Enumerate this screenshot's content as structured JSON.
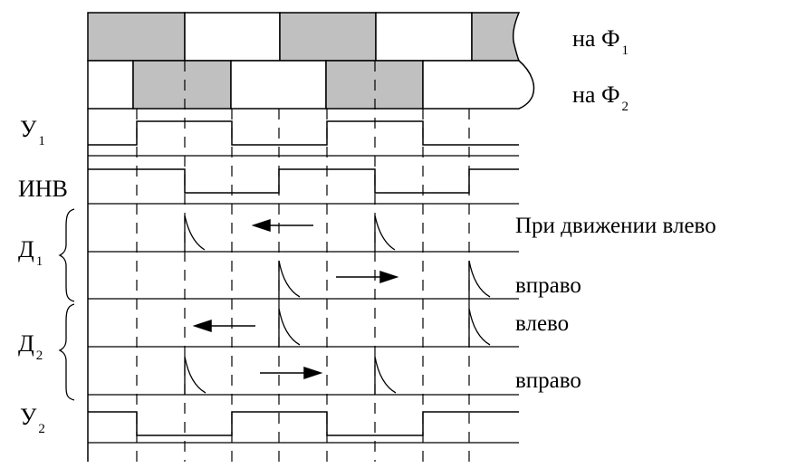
{
  "phase_labels": {
    "phi1": {
      "prefix": "на Ф",
      "index": "1"
    },
    "phi2": {
      "prefix": "на Ф",
      "index": "2"
    }
  },
  "signal_labels": {
    "u1": {
      "name": "У",
      "index": "1"
    },
    "inv": {
      "name": "ИНВ"
    },
    "d1": {
      "name": "Д",
      "index": "1"
    },
    "d2": {
      "name": "Д",
      "index": "2"
    },
    "u2": {
      "name": "У",
      "index": "2"
    }
  },
  "direction_labels": {
    "d1_left": "При движении влево",
    "d1_right": "вправо",
    "d2_left": "влево",
    "d2_right": "вправо"
  },
  "colors": {
    "shade": "#c0c0c0",
    "line": "#000000"
  }
}
